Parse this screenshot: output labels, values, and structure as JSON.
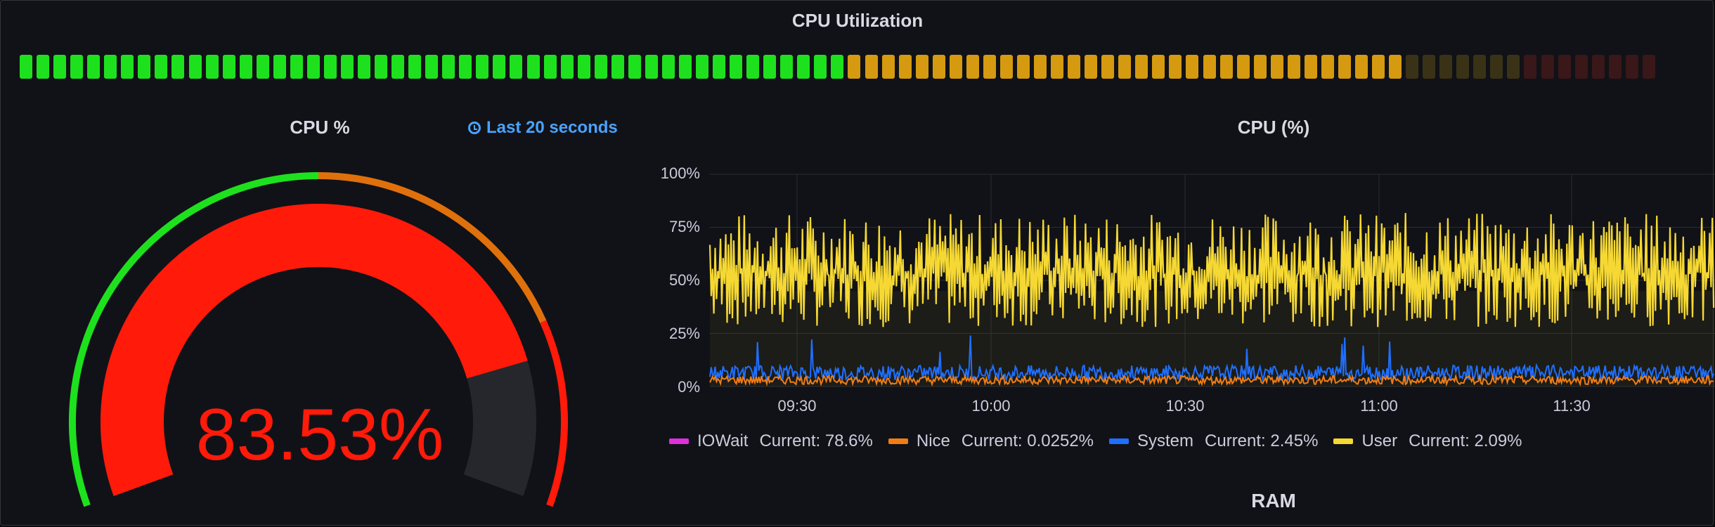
{
  "row": {
    "title": "CPU Utilization"
  },
  "bar_gauge": {
    "cells": 97,
    "active_green": 49,
    "active_orange": 33,
    "dim_orange": 7,
    "dim_red": 8,
    "colors": {
      "green": "#1ee11e",
      "orange": "#d59a0f",
      "dim_orange": "#3a3217",
      "dim_red": "#3a1718"
    }
  },
  "cpu_gauge": {
    "title": "CPU %",
    "time_info": "Last 20 seconds",
    "value": 83.53,
    "value_label": "83.53%",
    "min": 0,
    "max": 100,
    "thresholds": [
      {
        "from": 0,
        "to": 50,
        "color": "#1ee11e"
      },
      {
        "from": 50,
        "to": 80,
        "color": "#e0700c"
      },
      {
        "from": 80,
        "to": 100,
        "color": "#ff1a0a"
      }
    ],
    "fill_color": "#ff1a0a",
    "track_color": "#26272c"
  },
  "cpu_timeseries": {
    "title": "CPU (%)",
    "y_ticks": [
      "100%",
      "75%",
      "50%",
      "25%",
      "0%"
    ],
    "x_ticks": [
      "09:30",
      "10:00",
      "10:30",
      "11:00",
      "11:30"
    ],
    "legend": [
      {
        "name": "IOWait",
        "current": "Current: 78.6%",
        "color": "#e02fdc"
      },
      {
        "name": "Nice",
        "current": "Current: 0.0252%",
        "color": "#f07d13"
      },
      {
        "name": "System",
        "current": "Current: 2.45%",
        "color": "#1f6fff"
      },
      {
        "name": "User",
        "current": "Current: 2.09%",
        "color": "#f5d833"
      }
    ]
  },
  "ram": {
    "title": "RAM"
  }
}
